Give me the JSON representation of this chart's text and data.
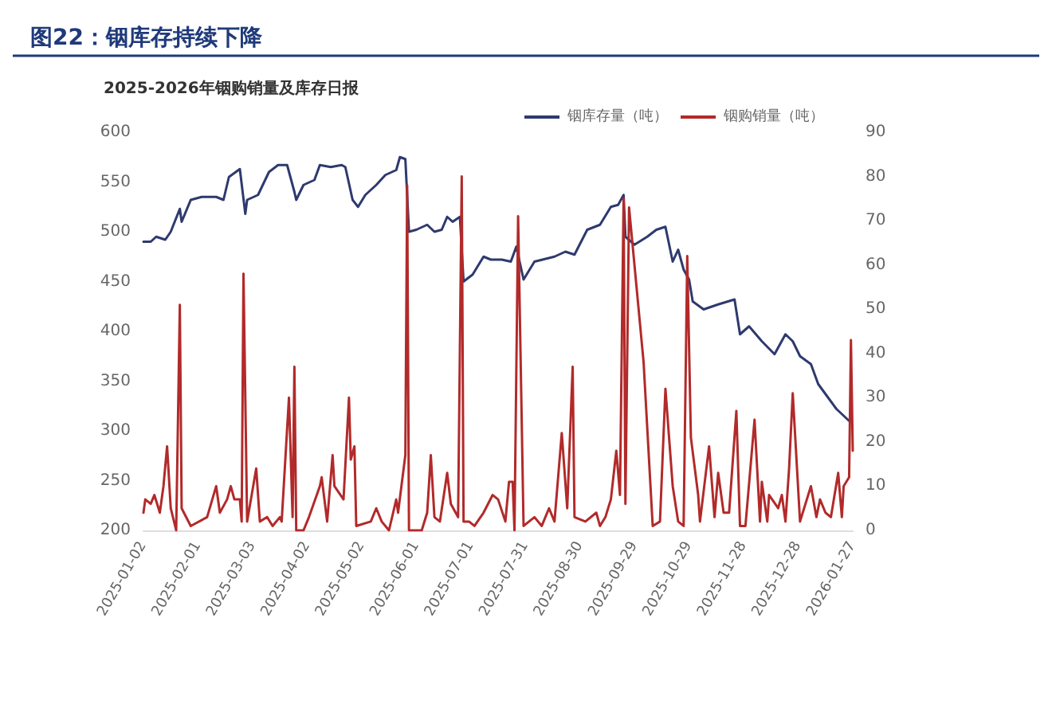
{
  "chart_data": {
    "type": "line",
    "title": "图22：铟库存持续下降",
    "subtitle": "2025-2026年铟购销量及库存日报",
    "legend": "top right",
    "grid": false,
    "marker": "none",
    "ylim": [
      200,
      600
    ],
    "yticks": [
      200,
      250,
      300,
      350,
      400,
      450,
      500,
      550,
      600
    ],
    "y2lim": [
      0,
      90
    ],
    "y2ticks": [
      0,
      10,
      20,
      30,
      40,
      50,
      60,
      70,
      80,
      90
    ],
    "xlim": [
      "2025-01-02",
      "2026-01-27"
    ],
    "xticks": [
      "2025-01-02",
      "2025-02-01",
      "2025-03-03",
      "2025-04-02",
      "2025-05-02",
      "2025-06-01",
      "2025-07-01",
      "2025-07-31",
      "2025-08-30",
      "2025-09-29",
      "2025-10-29",
      "2025-11-28",
      "2025-12-28",
      "2026-01-27"
    ],
    "series": [
      {
        "name": "铟库存量（吨）",
        "color": "#2e3a6e",
        "x": [
          "2025-01-02",
          "2025-01-06",
          "2025-01-09",
          "2025-01-14",
          "2025-01-17",
          "2025-01-22",
          "2025-01-23",
          "2025-01-28",
          "2025-02-03",
          "2025-02-11",
          "2025-02-15",
          "2025-02-18",
          "2025-02-24",
          "2025-02-27",
          "2025-02-28",
          "2025-03-06",
          "2025-03-12",
          "2025-03-17",
          "2025-03-22",
          "2025-03-26",
          "2025-03-27",
          "2025-03-31",
          "2025-04-06",
          "2025-04-09",
          "2025-04-15",
          "2025-04-21",
          "2025-04-23",
          "2025-04-27",
          "2025-04-30",
          "2025-05-04",
          "2025-05-10",
          "2025-05-15",
          "2025-05-21",
          "2025-05-23",
          "2025-05-26",
          "2025-05-28",
          "2025-06-01",
          "2025-06-07",
          "2025-06-11",
          "2025-06-15",
          "2025-06-18",
          "2025-06-21",
          "2025-06-25",
          "2025-06-27",
          "2025-07-02",
          "2025-07-08",
          "2025-07-12",
          "2025-07-18",
          "2025-07-23",
          "2025-07-26",
          "2025-07-30",
          "2025-08-05",
          "2025-08-16",
          "2025-08-22",
          "2025-08-27",
          "2025-09-03",
          "2025-09-10",
          "2025-09-16",
          "2025-09-20",
          "2025-09-23",
          "2025-09-24",
          "2025-09-29",
          "2025-10-06",
          "2025-10-11",
          "2025-10-16",
          "2025-10-20",
          "2025-10-23",
          "2025-10-26",
          "2025-10-29",
          "2025-10-31",
          "2025-11-06",
          "2025-11-14",
          "2025-11-23",
          "2025-11-26",
          "2025-12-01",
          "2025-12-08",
          "2025-12-15",
          "2025-12-21",
          "2025-12-25",
          "2025-12-29",
          "2026-01-04",
          "2026-01-08",
          "2026-01-12",
          "2026-01-18",
          "2026-01-25"
        ],
        "values": [
          490,
          490,
          495,
          492,
          500,
          523,
          510,
          532,
          535,
          535,
          532,
          555,
          563,
          518,
          532,
          537,
          560,
          567,
          567,
          540,
          532,
          547,
          552,
          567,
          565,
          567,
          565,
          532,
          525,
          537,
          547,
          557,
          562,
          575,
          573,
          500,
          502,
          507,
          500,
          502,
          515,
          510,
          515,
          450,
          457,
          475,
          472,
          472,
          470,
          485,
          452,
          470,
          475,
          480,
          477,
          502,
          507,
          525,
          527,
          537,
          495,
          487,
          495,
          502,
          505,
          470,
          482,
          462,
          452,
          430,
          422,
          427,
          432,
          397,
          405,
          390,
          377,
          397,
          390,
          375,
          367,
          347,
          337,
          322,
          310
        ]
      },
      {
        "name": "铟购销量（吨）",
        "color": "#b22a2a",
        "axis": "y2",
        "x": [
          "2025-01-02",
          "2025-01-03",
          "2025-01-06",
          "2025-01-08",
          "2025-01-11",
          "2025-01-13",
          "2025-01-15",
          "2025-01-17",
          "2025-01-20",
          "2025-01-22",
          "2025-01-23",
          "2025-01-28",
          "2025-02-06",
          "2025-02-11",
          "2025-02-13",
          "2025-02-17",
          "2025-02-19",
          "2025-02-21",
          "2025-02-24",
          "2025-02-25",
          "2025-02-26",
          "2025-02-28",
          "2025-03-05",
          "2025-03-07",
          "2025-03-11",
          "2025-03-14",
          "2025-03-18",
          "2025-03-19",
          "2025-03-23",
          "2025-03-25",
          "2025-03-26",
          "2025-03-27",
          "2025-03-31",
          "2025-04-03",
          "2025-04-09",
          "2025-04-10",
          "2025-04-13",
          "2025-04-16",
          "2025-04-17",
          "2025-04-22",
          "2025-04-25",
          "2025-04-26",
          "2025-04-28",
          "2025-04-29",
          "2025-05-07",
          "2025-05-10",
          "2025-05-13",
          "2025-05-17",
          "2025-05-21",
          "2025-05-22",
          "2025-05-26",
          "2025-05-27",
          "2025-05-28",
          "2025-06-04",
          "2025-06-07",
          "2025-06-09",
          "2025-06-11",
          "2025-06-14",
          "2025-06-18",
          "2025-06-20",
          "2025-06-24",
          "2025-06-26",
          "2025-06-27",
          "2025-06-30",
          "2025-07-03",
          "2025-07-08",
          "2025-07-13",
          "2025-07-16",
          "2025-07-20",
          "2025-07-22",
          "2025-07-24",
          "2025-07-25",
          "2025-07-27",
          "2025-07-30",
          "2025-08-05",
          "2025-08-09",
          "2025-08-13",
          "2025-08-16",
          "2025-08-20",
          "2025-08-23",
          "2025-08-26",
          "2025-08-27",
          "2025-09-02",
          "2025-09-08",
          "2025-09-10",
          "2025-09-13",
          "2025-09-16",
          "2025-09-19",
          "2025-09-21",
          "2025-09-23",
          "2025-09-24",
          "2025-09-26",
          "2025-10-04",
          "2025-10-09",
          "2025-10-13",
          "2025-10-16",
          "2025-10-20",
          "2025-10-23",
          "2025-10-26",
          "2025-10-28",
          "2025-10-30",
          "2025-11-03",
          "2025-11-04",
          "2025-11-09",
          "2025-11-12",
          "2025-11-14",
          "2025-11-17",
          "2025-11-20",
          "2025-11-24",
          "2025-11-26",
          "2025-11-29",
          "2025-12-04",
          "2025-12-07",
          "2025-12-08",
          "2025-12-11",
          "2025-12-12",
          "2025-12-17",
          "2025-12-19",
          "2025-12-21",
          "2025-12-23",
          "2025-12-25",
          "2025-12-29",
          "2026-01-04",
          "2026-01-07",
          "2026-01-09",
          "2026-01-12",
          "2026-01-15",
          "2026-01-19",
          "2026-01-21",
          "2026-01-22",
          "2026-01-25",
          "2026-01-26",
          "2026-01-27"
        ],
        "values": [
          4,
          7,
          6,
          8,
          4,
          10,
          19,
          5,
          0,
          51,
          5,
          1,
          3,
          10,
          4,
          7,
          10,
          7,
          7,
          2,
          58,
          2,
          14,
          2,
          3,
          1,
          3,
          2,
          30,
          3,
          37,
          0,
          0,
          3,
          10,
          12,
          2,
          17,
          10,
          7,
          30,
          16,
          19,
          1,
          2,
          5,
          2,
          0,
          7,
          4,
          17,
          78,
          0,
          0,
          4,
          17,
          3,
          2,
          13,
          6,
          3,
          80,
          2,
          2,
          1,
          4,
          8,
          7,
          2,
          11,
          11,
          0,
          71,
          1,
          3,
          1,
          5,
          2,
          22,
          5,
          37,
          3,
          2,
          4,
          1,
          3,
          7,
          18,
          8,
          75,
          6,
          73,
          38,
          1,
          2,
          32,
          10,
          2,
          1,
          62,
          21,
          8,
          2,
          19,
          3,
          13,
          4,
          4,
          27,
          1,
          1,
          25,
          2,
          11,
          2,
          8,
          5,
          8,
          2,
          14,
          31,
          2,
          10,
          3,
          7,
          4,
          3,
          13,
          3,
          10,
          12,
          43,
          18
        ]
      }
    ]
  }
}
